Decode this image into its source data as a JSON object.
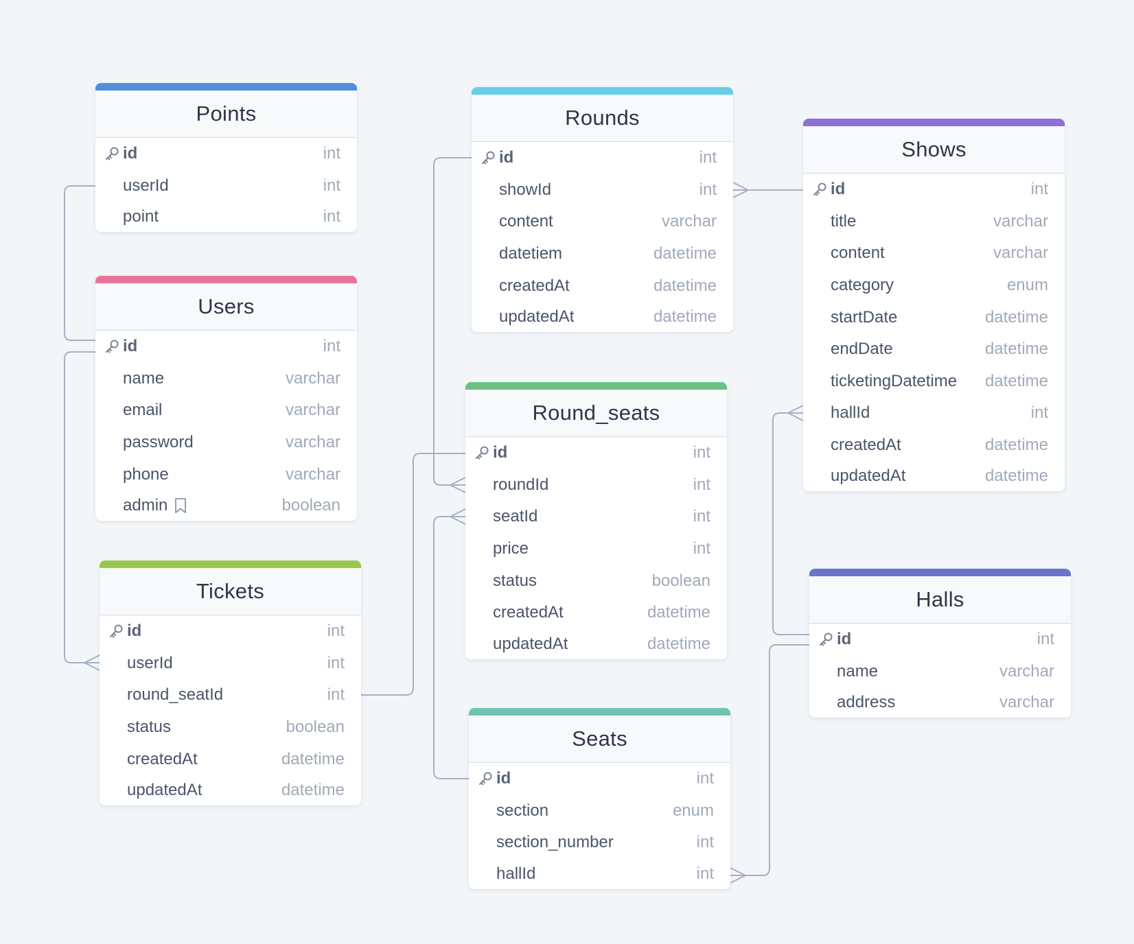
{
  "colors": {
    "background": "#f3f6f9",
    "connector": "#a6b1c0",
    "points": "#4f8fd9",
    "users": "#e8749a",
    "tickets": "#97c74a",
    "rounds": "#67cde8",
    "round_seats": "#6cc186",
    "seats": "#6fc3b1",
    "shows": "#8e6fd8",
    "halls": "#6a74c8"
  },
  "tables": {
    "points": {
      "name": "Points",
      "fields": [
        {
          "name": "id",
          "type": "int",
          "pk": true
        },
        {
          "name": "userId",
          "type": "int"
        },
        {
          "name": "point",
          "type": "int"
        }
      ]
    },
    "users": {
      "name": "Users",
      "fields": [
        {
          "name": "id",
          "type": "int",
          "pk": true
        },
        {
          "name": "name",
          "type": "varchar"
        },
        {
          "name": "email",
          "type": "varchar"
        },
        {
          "name": "password",
          "type": "varchar"
        },
        {
          "name": "phone",
          "type": "varchar"
        },
        {
          "name": "admin",
          "type": "boolean",
          "note_icon": "bookmark-icon"
        }
      ]
    },
    "tickets": {
      "name": "Tickets",
      "fields": [
        {
          "name": "id",
          "type": "int",
          "pk": true
        },
        {
          "name": "userId",
          "type": "int"
        },
        {
          "name": "round_seatId",
          "type": "int"
        },
        {
          "name": "status",
          "type": "boolean"
        },
        {
          "name": "createdAt",
          "type": "datetime"
        },
        {
          "name": "updatedAt",
          "type": "datetime"
        }
      ]
    },
    "rounds": {
      "name": "Rounds",
      "fields": [
        {
          "name": "id",
          "type": "int",
          "pk": true
        },
        {
          "name": "showId",
          "type": "int"
        },
        {
          "name": "content",
          "type": "varchar"
        },
        {
          "name": "datetiem",
          "type": "datetime"
        },
        {
          "name": "createdAt",
          "type": "datetime"
        },
        {
          "name": "updatedAt",
          "type": "datetime"
        }
      ]
    },
    "round_seats": {
      "name": "Round_seats",
      "fields": [
        {
          "name": "id",
          "type": "int",
          "pk": true
        },
        {
          "name": "roundId",
          "type": "int"
        },
        {
          "name": "seatId",
          "type": "int"
        },
        {
          "name": "price",
          "type": "int"
        },
        {
          "name": "status",
          "type": "boolean"
        },
        {
          "name": "createdAt",
          "type": "datetime"
        },
        {
          "name": "updatedAt",
          "type": "datetime"
        }
      ]
    },
    "seats": {
      "name": "Seats",
      "fields": [
        {
          "name": "id",
          "type": "int",
          "pk": true
        },
        {
          "name": "section",
          "type": "enum"
        },
        {
          "name": "section_number",
          "type": "int"
        },
        {
          "name": "hallId",
          "type": "int"
        }
      ]
    },
    "shows": {
      "name": "Shows",
      "fields": [
        {
          "name": "id",
          "type": "int",
          "pk": true
        },
        {
          "name": "title",
          "type": "varchar"
        },
        {
          "name": "content",
          "type": "varchar"
        },
        {
          "name": "category",
          "type": "enum"
        },
        {
          "name": "startDate",
          "type": "datetime"
        },
        {
          "name": "endDate",
          "type": "datetime"
        },
        {
          "name": "ticketingDatetime",
          "type": "datetime"
        },
        {
          "name": "hallId",
          "type": "int"
        },
        {
          "name": "createdAt",
          "type": "datetime"
        },
        {
          "name": "updatedAt",
          "type": "datetime"
        }
      ]
    },
    "halls": {
      "name": "Halls",
      "fields": [
        {
          "name": "id",
          "type": "int",
          "pk": true
        },
        {
          "name": "name",
          "type": "varchar"
        },
        {
          "name": "address",
          "type": "varchar"
        }
      ]
    }
  },
  "relationships": [
    {
      "from": "points.userId",
      "to": "users.id"
    },
    {
      "from": "tickets.userId",
      "to": "users.id"
    },
    {
      "from": "tickets.round_seatId",
      "to": "round_seats.id"
    },
    {
      "from": "round_seats.roundId",
      "to": "rounds.id"
    },
    {
      "from": "round_seats.seatId",
      "to": "seats.id"
    },
    {
      "from": "rounds.showId",
      "to": "shows.id"
    },
    {
      "from": "shows.hallId",
      "to": "halls.id"
    },
    {
      "from": "seats.hallId",
      "to": "halls.id"
    }
  ]
}
